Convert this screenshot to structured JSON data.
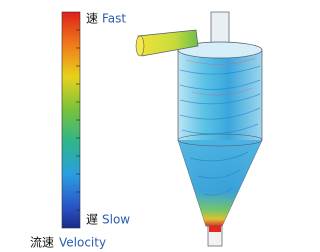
{
  "legend": {
    "fast_char": "速",
    "fast": "Fast",
    "slow_char": "遅",
    "slow": "Slow",
    "title_char": "流速",
    "title": "Velocity"
  }
}
